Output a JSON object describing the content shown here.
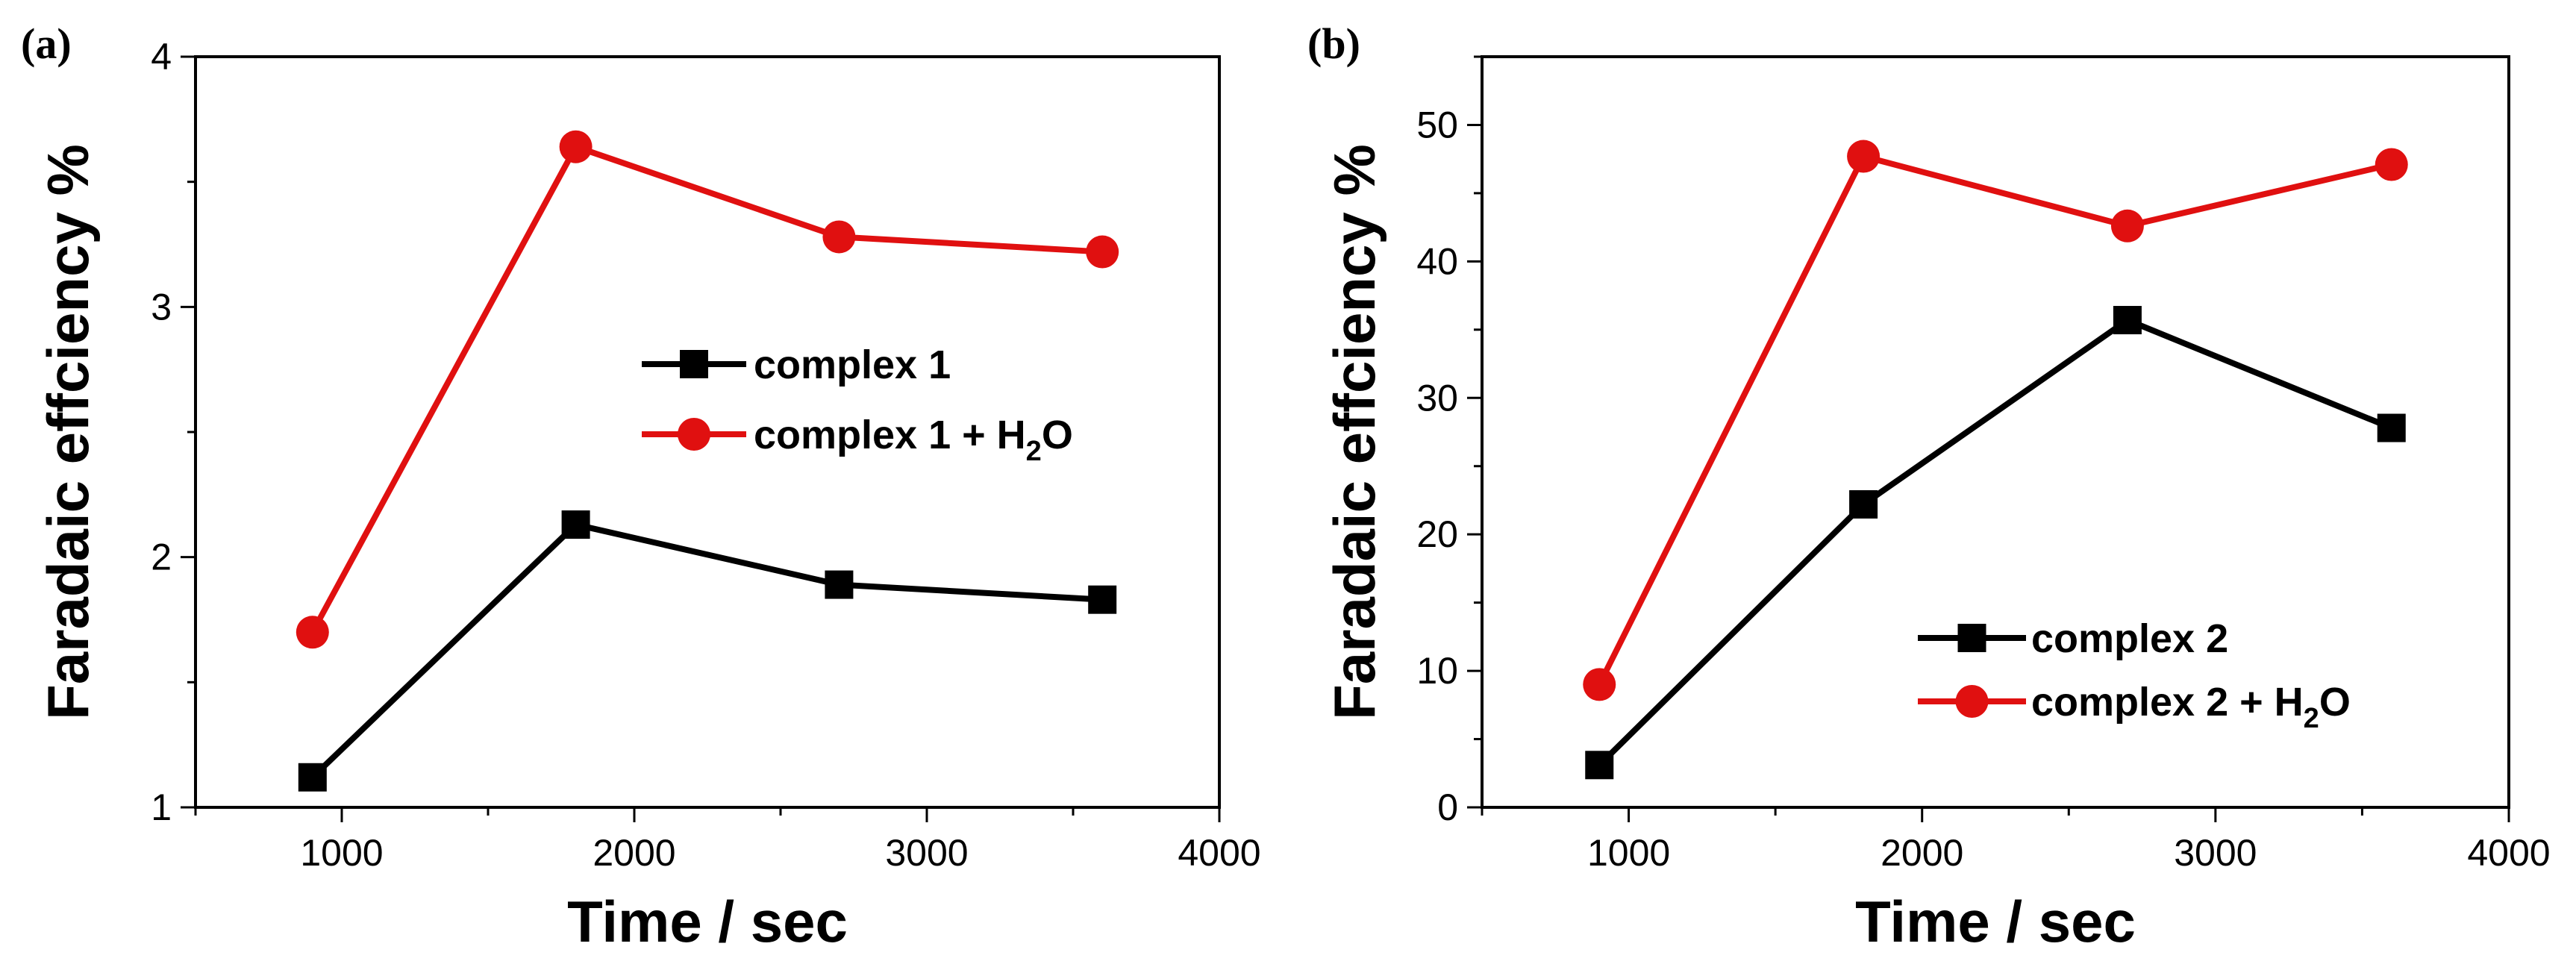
{
  "chart_data": [
    {
      "panel_label": "(a)",
      "type": "line",
      "x": [
        900,
        1800,
        2700,
        3600
      ],
      "xlim": [
        500,
        4000
      ],
      "xticks": [
        1000,
        2000,
        3000,
        4000
      ],
      "ylim": [
        1,
        4
      ],
      "yticks": [
        1,
        2,
        3,
        4
      ],
      "xlabel": "Time / sec",
      "ylabel": "Faradaic effciency %",
      "legend_position": "center-right",
      "series": [
        {
          "name": "complex 1",
          "legend_main": "complex 1",
          "legend_sub": "",
          "legend_end": "",
          "color": "#000000",
          "marker": "square",
          "values": [
            1.12,
            2.13,
            1.89,
            1.83
          ]
        },
        {
          "name": "complex 1 + H2O",
          "legend_main": "complex 1  + H",
          "legend_sub": "2",
          "legend_end": "O",
          "color": "#e01010",
          "marker": "circle",
          "values": [
            1.7,
            3.64,
            3.28,
            3.22
          ]
        }
      ]
    },
    {
      "panel_label": "(b)",
      "type": "line",
      "x": [
        900,
        1800,
        2700,
        3600
      ],
      "xlim": [
        500,
        4000
      ],
      "xticks": [
        1000,
        2000,
        3000,
        4000
      ],
      "ylim": [
        0,
        55
      ],
      "yticks": [
        0,
        10,
        20,
        30,
        40,
        50
      ],
      "xlabel": "Time / sec",
      "ylabel": "Faradaic effciency %",
      "legend_position": "bottom-right",
      "series": [
        {
          "name": "complex 2",
          "legend_main": "complex 2",
          "legend_sub": "",
          "legend_end": "",
          "color": "#000000",
          "marker": "square",
          "values": [
            3.1,
            22.2,
            35.7,
            27.8
          ]
        },
        {
          "name": "complex 2 + H2O",
          "legend_main": "complex 2 + H",
          "legend_sub": "2",
          "legend_end": "O",
          "color": "#e01010",
          "marker": "circle",
          "values": [
            9.0,
            47.7,
            42.6,
            47.1
          ]
        }
      ]
    }
  ]
}
